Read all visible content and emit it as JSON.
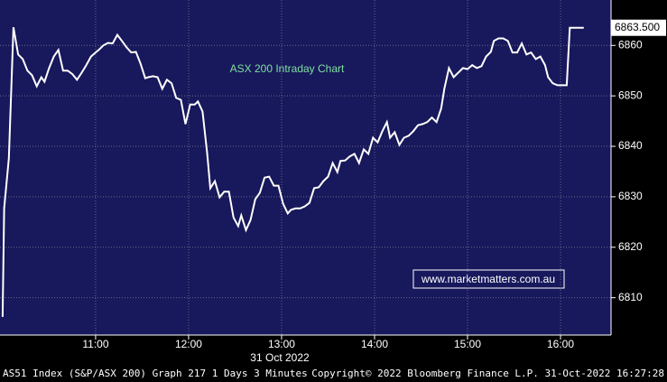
{
  "chart_data": {
    "type": "line",
    "title": "ASX 200 Intraday Chart",
    "watermark": "www.marketmatters.com.au",
    "x_axis_label": "31 Oct 2022",
    "footer_left": "AS51 Index (S&P/ASX 200) Graph 217 1 Days 3 Minutes",
    "footer_right": "Copyright© 2022 Bloomberg Finance L.P.  31-Oct-2022 16:27:28",
    "last_value_label": {
      "value": 6863.5,
      "label": "6863.500"
    },
    "xlim": [
      598.3,
      992.6
    ],
    "xticks": [
      {
        "value": 660,
        "label": "11:00"
      },
      {
        "value": 720,
        "label": "12:00"
      },
      {
        "value": 780,
        "label": "13:00"
      },
      {
        "value": 840,
        "label": "14:00"
      },
      {
        "value": 900,
        "label": "15:00"
      },
      {
        "value": 960,
        "label": "16:00"
      }
    ],
    "ylim": [
      6802.6,
      6869
    ],
    "yticks": [
      6810,
      6820,
      6830,
      6840,
      6850,
      6860
    ],
    "grid": true,
    "x": [
      600,
      601,
      604,
      607,
      610,
      613,
      616,
      619,
      622,
      625,
      627,
      630,
      633,
      636,
      639,
      642,
      645,
      648,
      651,
      654,
      657,
      660,
      662,
      665,
      668,
      671,
      674,
      677,
      680,
      683,
      686,
      689,
      692,
      694,
      697,
      700,
      703,
      706,
      709,
      712,
      715,
      718,
      721,
      724,
      726,
      729,
      732,
      734,
      737,
      740,
      743,
      746,
      749,
      752,
      754,
      757,
      760,
      763,
      766,
      769,
      772,
      775,
      778,
      781,
      784,
      786,
      789,
      792,
      795,
      798,
      801,
      804,
      807,
      810,
      813,
      816,
      818,
      821,
      824,
      827,
      830,
      833,
      836,
      839,
      842,
      845,
      848,
      850,
      853,
      856,
      859,
      862,
      865,
      868,
      871,
      874,
      877,
      880,
      883,
      885,
      888,
      891,
      894,
      897,
      900,
      903,
      906,
      909,
      912,
      915,
      917,
      920,
      923,
      926,
      929,
      932,
      935,
      938,
      941,
      944,
      947,
      950,
      952,
      955,
      958,
      961,
      964,
      966,
      971,
      975
    ],
    "series": [
      {
        "name": "S&P/ASX 200",
        "color": "#ffffff",
        "values": [
          6806.2,
          6827.7,
          6837.6,
          6863.6,
          6858.2,
          6857.3,
          6855.0,
          6854.1,
          6851.9,
          6853.7,
          6852.8,
          6855.5,
          6857.8,
          6859.1,
          6855.0,
          6855.0,
          6854.3,
          6853.2,
          6854.6,
          6856.1,
          6857.8,
          6858.6,
          6859.1,
          6860.0,
          6860.5,
          6860.4,
          6862.1,
          6860.9,
          6859.6,
          6858.6,
          6858.7,
          6856.4,
          6853.5,
          6853.7,
          6853.9,
          6853.7,
          6851.4,
          6853.2,
          6852.5,
          6849.6,
          6849.2,
          6844.4,
          6848.3,
          6848.3,
          6848.9,
          6846.9,
          6838.5,
          6831.7,
          6833.1,
          6829.9,
          6831.0,
          6831.0,
          6825.9,
          6824.2,
          6826.3,
          6823.4,
          6825.4,
          6829.5,
          6830.8,
          6833.8,
          6834.0,
          6832.2,
          6832.2,
          6828.6,
          6826.7,
          6827.4,
          6827.7,
          6827.7,
          6828.1,
          6828.8,
          6831.7,
          6831.9,
          6833.1,
          6834.0,
          6836.7,
          6834.9,
          6837.1,
          6837.2,
          6838.0,
          6838.5,
          6836.7,
          6839.4,
          6838.5,
          6841.7,
          6840.8,
          6843.0,
          6844.8,
          6841.7,
          6842.8,
          6840.3,
          6841.7,
          6842.1,
          6843.0,
          6844.2,
          6844.4,
          6844.8,
          6845.7,
          6844.8,
          6847.5,
          6851.4,
          6855.5,
          6853.7,
          6854.6,
          6855.5,
          6855.3,
          6856.1,
          6855.5,
          6855.9,
          6857.8,
          6858.7,
          6860.9,
          6861.4,
          6861.4,
          6860.9,
          6858.6,
          6858.6,
          6860.4,
          6858.2,
          6858.6,
          6857.3,
          6857.8,
          6856.1,
          6853.7,
          6852.5,
          6852.1,
          6852.1,
          6852.1,
          6863.5,
          6863.5,
          6863.5
        ]
      }
    ]
  }
}
